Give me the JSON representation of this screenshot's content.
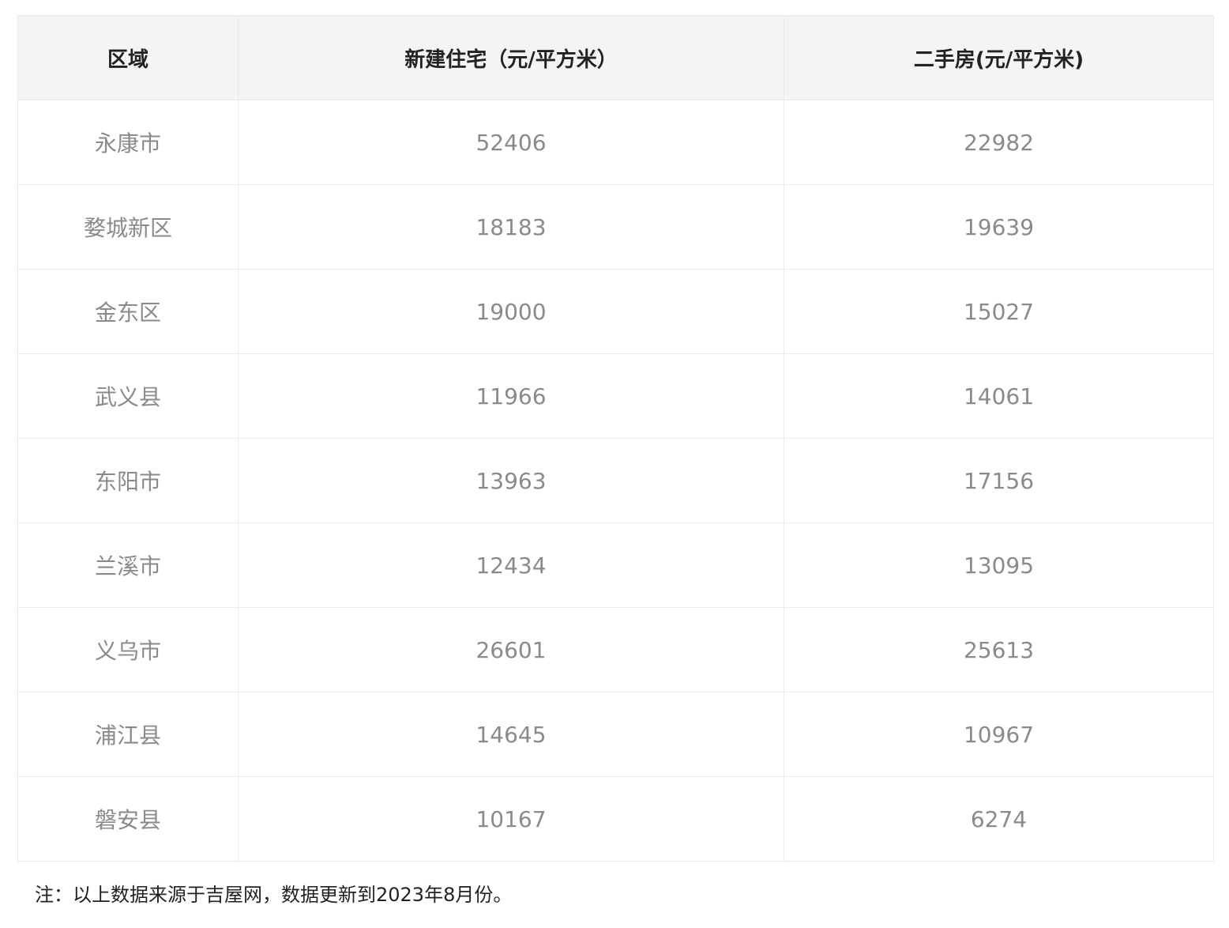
{
  "table": {
    "headers": [
      "区域",
      "新建住宅（元/平方米）",
      "二手房(元/平方米)"
    ],
    "rows": [
      [
        "永康市",
        "52406",
        "22982"
      ],
      [
        "婺城新区",
        "18183",
        "19639"
      ],
      [
        "金东区",
        "19000",
        "15027"
      ],
      [
        "武义县",
        "11966",
        "14061"
      ],
      [
        "东阳市",
        "13963",
        "17156"
      ],
      [
        "兰溪市",
        "12434",
        "13095"
      ],
      [
        "义乌市",
        "26601",
        "25613"
      ],
      [
        "浦江县",
        "14645",
        "10967"
      ],
      [
        "磐安县",
        "10167",
        "6274"
      ]
    ]
  },
  "note": "注：以上数据来源于吉屋网，数据更新到2023年8月份。"
}
